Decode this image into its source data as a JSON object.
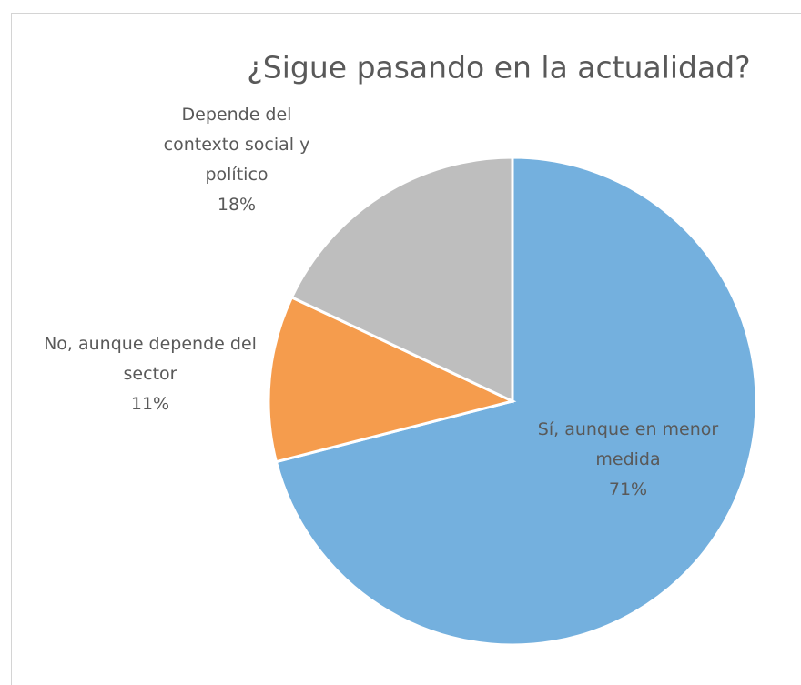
{
  "chart_data": {
    "type": "pie",
    "title": "¿Sigue pasando en la actualidad?",
    "categories": [
      "Sí, aunque en menor medida",
      "No, aunque depende del sector",
      "Depende del contexto social y político"
    ],
    "values": [
      71,
      11,
      18
    ],
    "value_labels": [
      "71%",
      "11%",
      "18%"
    ],
    "colors": [
      "#74b0de",
      "#f59c4d",
      "#bebebe"
    ]
  }
}
